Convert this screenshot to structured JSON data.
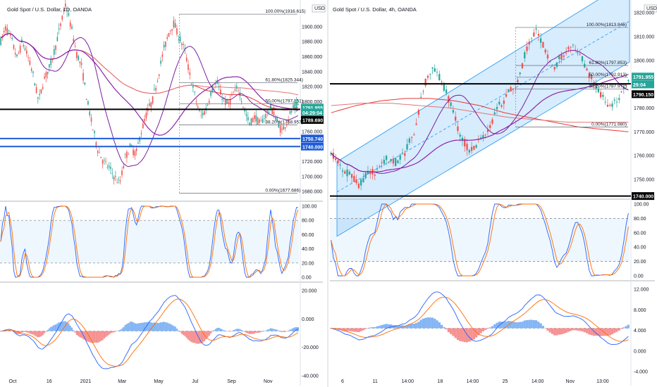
{
  "chart_data": [
    {
      "type": "candlestick",
      "title": "Gold Spot / U.S. Dollar, 1D, OANDA",
      "currency": "USD",
      "x_ticks": [
        "Oct",
        "16",
        "2021",
        "Mar",
        "May",
        "Jul",
        "Sep",
        "Nov"
      ],
      "price_ticks": [
        1680.0,
        1700.0,
        1720.0,
        1740.0,
        1760.0,
        1780.0,
        1800.0,
        1820.0,
        1840.0,
        1860.0,
        1880.0,
        1900.0
      ],
      "ylim": [
        1668,
        1928
      ],
      "fibonacci": [
        {
          "label": "100.00%(1916.615)",
          "price": 1916.615
        },
        {
          "label": "61.80%(1825.344)",
          "price": 1825.344
        },
        {
          "label": "50.00%(1797.151)",
          "price": 1797.151
        },
        {
          "label": "38.20%(1768.957)",
          "price": 1768.957
        },
        {
          "label": "0.00%(1677.686)",
          "price": 1677.686
        }
      ],
      "h_lines": [
        {
          "price": 1789.69,
          "color": "#000000"
        },
        {
          "price": 1750.74,
          "color": "#1e5bd6"
        },
        {
          "price": 1740.0,
          "color": "#1e5bd6"
        }
      ],
      "price_tags": [
        {
          "label": "1791.955",
          "price": 1791.955,
          "color": "#26a69a"
        },
        {
          "label": "04:29:04",
          "price": 1785.5,
          "color": "#26a69a"
        },
        {
          "label": "1789.690",
          "price": 1775.5,
          "color": "#000000"
        },
        {
          "label": "1750.740",
          "price": 1750.74,
          "color": "#1e5bd6"
        },
        {
          "label": "1740.000",
          "price": 1740.0,
          "color": "#1e5bd6"
        }
      ],
      "stoch_ticks": [
        "100.00",
        "80.00",
        "60.00",
        "40.00",
        "20.00",
        "0.00"
      ],
      "macd_ticks": [
        "20.000",
        "0.000",
        "-20.000",
        "-40.000"
      ]
    },
    {
      "type": "candlestick",
      "title": "Gold Spot / U.S. Dollar, 4h, OANDA",
      "currency": "USD",
      "x_ticks": [
        "6",
        "11",
        "14:00",
        "18",
        "14:00",
        "25",
        "14:00",
        "Nov",
        "13:00"
      ],
      "price_ticks": [
        1750.0,
        1760.0,
        1770.0,
        1780.0,
        1790.0,
        1800.0,
        1810.0,
        1820.0
      ],
      "ylim": [
        1742,
        1823
      ],
      "fibonacci": [
        {
          "label": "100.00%(1813.845)",
          "price": 1813.845
        },
        {
          "label": "61.80%(1797.853)",
          "price": 1797.853
        },
        {
          "label": "50.00%(1792.913)",
          "price": 1792.913
        },
        {
          "label": "38.20%(1787.972)",
          "price": 1787.972
        },
        {
          "label": "0.00%(1771.980)",
          "price": 1771.98
        }
      ],
      "h_lines": [
        {
          "price": 1790.15,
          "color": "#000000"
        },
        {
          "price": 1743.0,
          "color": "#000000"
        }
      ],
      "price_tags": [
        {
          "label": "1791.955",
          "price": 1793.2,
          "color": "#26a69a"
        },
        {
          "label": "29:04",
          "price": 1789.9,
          "color": "#26a69a"
        },
        {
          "label": "1790.150",
          "price": 1785.8,
          "color": "#000000"
        },
        {
          "label": "1740.000",
          "price": 1743.0,
          "color": "#000000"
        }
      ],
      "stoch_ticks": [
        "100.00",
        "80.00",
        "60.00",
        "40.00",
        "20.00",
        "0.00"
      ],
      "macd_ticks": [
        "12.000",
        "8.000",
        "4.000",
        "0.000",
        "-4.000"
      ]
    }
  ]
}
